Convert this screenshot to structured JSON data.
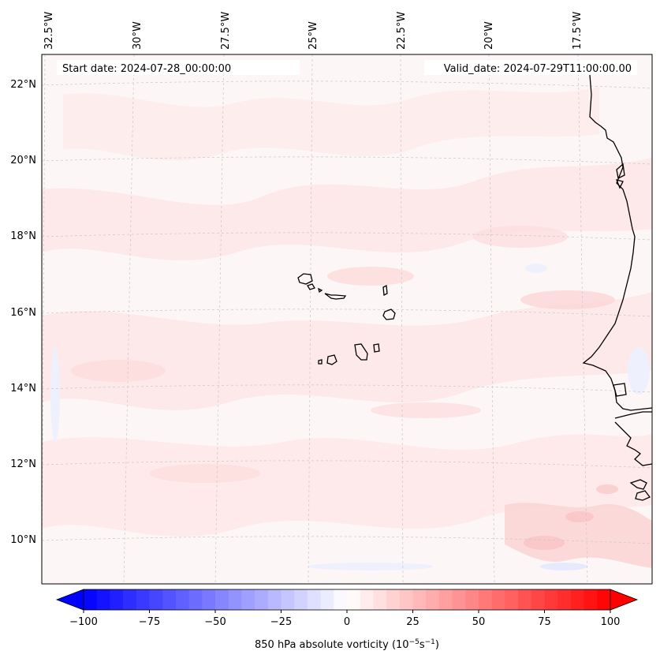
{
  "header": {
    "start_date": "Start date: 2024-07-28_00:00:00",
    "valid_date": "Valid_date: 2024-07-29T11:00:00.00"
  },
  "lon_labels": [
    "32.5°W",
    "30°W",
    "27.5°W",
    "25°W",
    "22.5°W",
    "20°W",
    "17.5°W"
  ],
  "lat_labels": [
    "22°N",
    "20°N",
    "18°N",
    "16°N",
    "14°N",
    "12°N",
    "10°N"
  ],
  "colorbar": {
    "label_main": "850 hPa absolute vorticity (10",
    "label_exp1": "−5",
    "label_mid": "s",
    "label_exp2": "−1",
    "label_end": ")",
    "ticks": [
      "−100",
      "−75",
      "−50",
      "−25",
      "0",
      "25",
      "50",
      "75",
      "100"
    ],
    "min": -100,
    "max": 100,
    "step": 5,
    "colors": {
      "negative_end": "#0000ff",
      "zero": "#ffffff",
      "positive_end": "#ff0000"
    }
  },
  "field_colors": {
    "background": "#fdf6f6",
    "light_pink": "#fde6e6",
    "medium_pink": "#fbd6d6",
    "light_blue": "#eef1fd",
    "coastline": "#000000",
    "gridline": "#c8c8c8"
  }
}
